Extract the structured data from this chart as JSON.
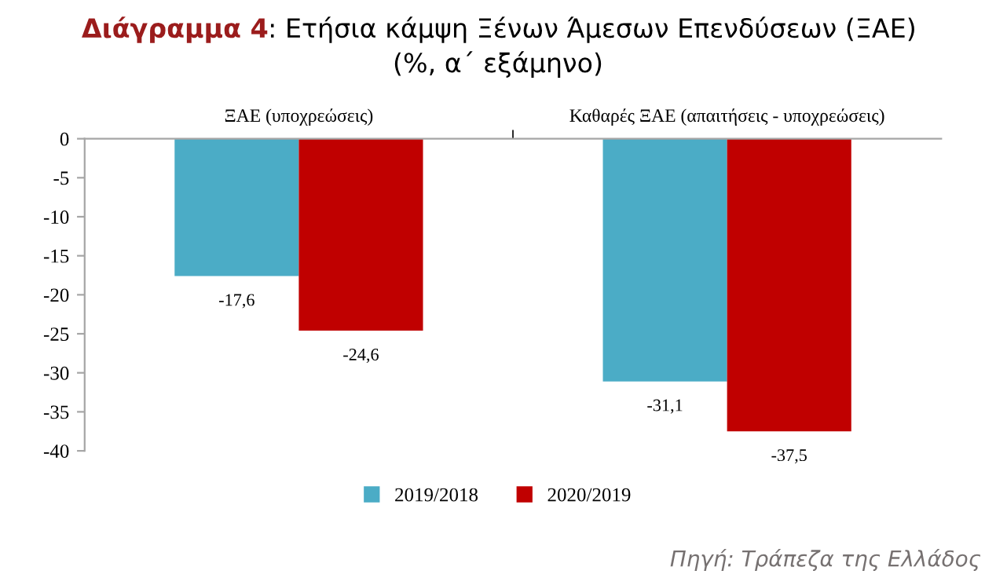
{
  "chart_data": {
    "type": "bar",
    "title": "Διάγραμμα 4: Ετήσια κάμψη Ξένων Άμεσων Επενδύσεων (ΞΑΕ)",
    "subtitle": "(%, α΄ εξάμηνο)",
    "categories": [
      "ΞΑΕ (υποχρεώσεις)",
      "Καθαρές ΞΑΕ (απαιτήσεις - υποχρεώσεις)"
    ],
    "series": [
      {
        "name": "2019/2018",
        "color": "#4bacc6",
        "values": [
          -17.6,
          -31.1
        ],
        "value_labels": [
          "-17,6",
          "-31,1"
        ]
      },
      {
        "name": "2020/2019",
        "color": "#c00000",
        "values": [
          -24.6,
          -37.5
        ],
        "value_labels": [
          "-24,6",
          "-37,5"
        ]
      }
    ],
    "ylim": [
      -40,
      0
    ],
    "yticks": [
      0,
      -5,
      -10,
      -15,
      -20,
      -25,
      -30,
      -35,
      -40
    ],
    "grid": false,
    "legend": "bottom",
    "annotations": [
      "Πηγή: Τράπεζα της Ελλάδος"
    ]
  }
}
